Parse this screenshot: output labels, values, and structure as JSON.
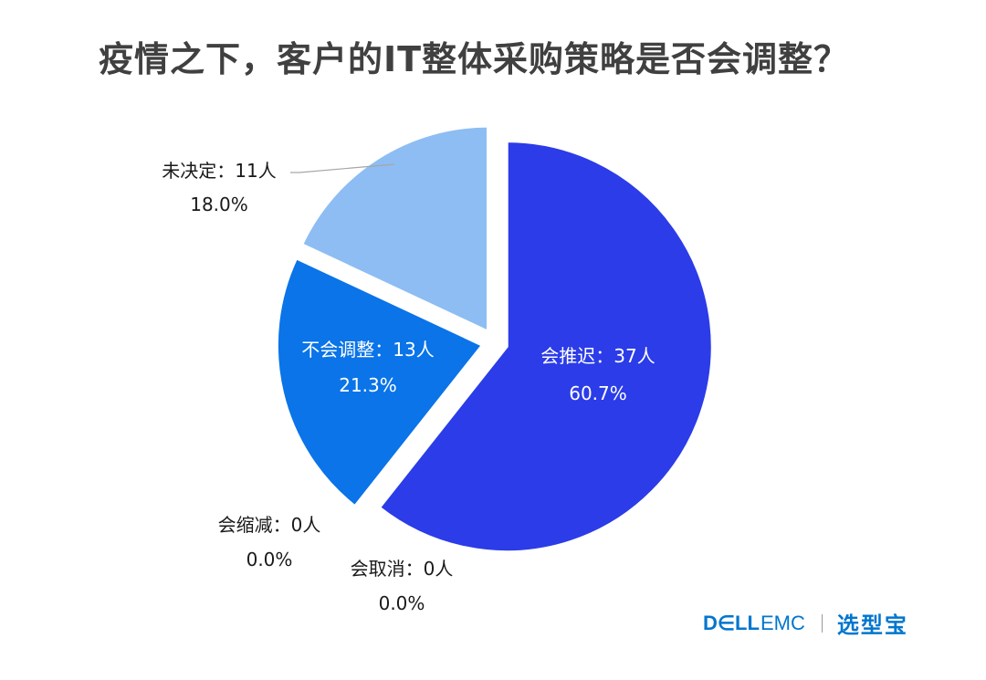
{
  "title": "疫情之下，客户的IT整体采购策略是否会调整？",
  "chart_data": {
    "type": "pie",
    "slices": [
      {
        "name": "会推迟",
        "count": 37,
        "percent": 60.7,
        "label": "会推迟：37人",
        "pct_label": "60.7%",
        "color": "#2b3ce8"
      },
      {
        "name": "会缩减",
        "count": 0,
        "percent": 0.0,
        "label": "会缩减：0人",
        "pct_label": "0.0%",
        "color": "#2f5bd8"
      },
      {
        "name": "会取消",
        "count": 0,
        "percent": 0.0,
        "label": "会取消：0人",
        "pct_label": "0.0%",
        "color": "#1f6be0"
      },
      {
        "name": "不会调整",
        "count": 13,
        "percent": 21.3,
        "label": "不会调整：13人",
        "pct_label": "21.3%",
        "color": "#0a74e8"
      },
      {
        "name": "未决定",
        "count": 11,
        "percent": 18.0,
        "label": "未决定：11人",
        "pct_label": "18.0%",
        "color": "#8dbdf3"
      }
    ]
  },
  "brand": {
    "dell": "D∈LL",
    "emc": "EMC",
    "partner": "选型宝"
  }
}
